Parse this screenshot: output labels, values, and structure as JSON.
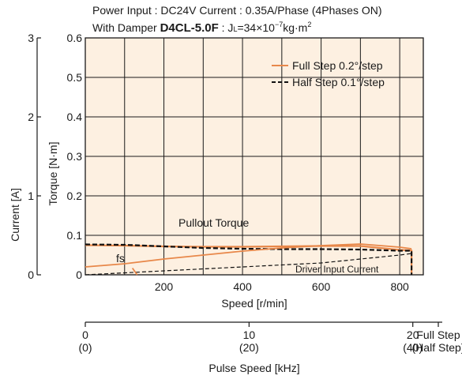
{
  "header": {
    "line1": "Power Input : DC24V    Current : 0.35A/Phase (4Phases ON)",
    "line2_prefix": "With Damper ",
    "line2_model": "D4CL-5.0F",
    "line2_suffix": " : J",
    "line2_sub": "L",
    "line2_value": "=34×10",
    "line2_exp": "−7",
    "line2_unit": "kg·m",
    "line2_unit_exp": "2"
  },
  "chart_data": {
    "type": "line",
    "colors": {
      "background": "#fdf0e1",
      "full_step": "#e8884a",
      "half_step": "#111111",
      "grid": "#1a1a1a"
    },
    "torque_axis": {
      "label": "Torque [N·m]",
      "ylim": [
        0,
        0.6
      ],
      "ticks": [
        "0",
        "0.1",
        "0.2",
        "0.3",
        "0.4",
        "0.5",
        "0.6"
      ]
    },
    "current_axis": {
      "label": "Current [A]",
      "ylim": [
        0,
        3
      ],
      "ticks": [
        "0",
        "1",
        "2",
        "3"
      ]
    },
    "speed_axis": {
      "label": "Speed [r/min]",
      "xlim": [
        0,
        860
      ],
      "ticks": [
        "200",
        "400",
        "600",
        "800"
      ]
    },
    "pulse_axis": {
      "label": "Pulse Speed [kHz]",
      "ticks": [
        {
          "speed": 0,
          "top": "0",
          "bottom": "(0)"
        },
        {
          "speed": 416.7,
          "top": "10",
          "bottom": "(20)"
        },
        {
          "speed": 833.3,
          "top": "20",
          "bottom": "(40)"
        },
        {
          "speed": 940,
          "top": "Full Step",
          "bottom": "(Half Step)"
        }
      ]
    },
    "legend": {
      "placement": "top-right",
      "entries": [
        {
          "label": "Full Step 0.2°/step",
          "series": "full_step"
        },
        {
          "label": "Half Step 0.1°/step",
          "series": "half_step"
        }
      ]
    },
    "annotations": {
      "pullout": "Pullout Torque",
      "fs": "fs",
      "driver_current": "Driver Input Current"
    },
    "series": [
      {
        "id": "full_step",
        "kind": "torque",
        "x": [
          0,
          100,
          200,
          300,
          400,
          500,
          600,
          700,
          800,
          830,
          830
        ],
        "y": [
          0.075,
          0.074,
          0.072,
          0.071,
          0.071,
          0.072,
          0.073,
          0.073,
          0.063,
          0.062,
          0
        ]
      },
      {
        "id": "half_step",
        "kind": "torque",
        "x": [
          0,
          100,
          200,
          300,
          400,
          500,
          600,
          700,
          800,
          830,
          830
        ],
        "y": [
          0.077,
          0.076,
          0.072,
          0.068,
          0.066,
          0.065,
          0.065,
          0.064,
          0.061,
          0.061,
          0
        ]
      },
      {
        "id": "full_step_current",
        "kind": "current",
        "x": [
          0,
          50,
          100,
          200,
          300,
          400,
          500,
          600,
          700,
          800,
          830
        ],
        "y": [
          0.1,
          0.12,
          0.14,
          0.2,
          0.25,
          0.3,
          0.34,
          0.37,
          0.39,
          0.35,
          0.33
        ]
      },
      {
        "id": "half_step_current",
        "kind": "current",
        "x": [
          0,
          200,
          400,
          600,
          800,
          830
        ],
        "y": [
          0,
          0.05,
          0.1,
          0.15,
          0.25,
          0.27
        ]
      },
      {
        "id": "fs_marker",
        "kind": "torque",
        "x": [
          120,
          132
        ],
        "y": [
          0.017,
          0
        ]
      }
    ]
  }
}
